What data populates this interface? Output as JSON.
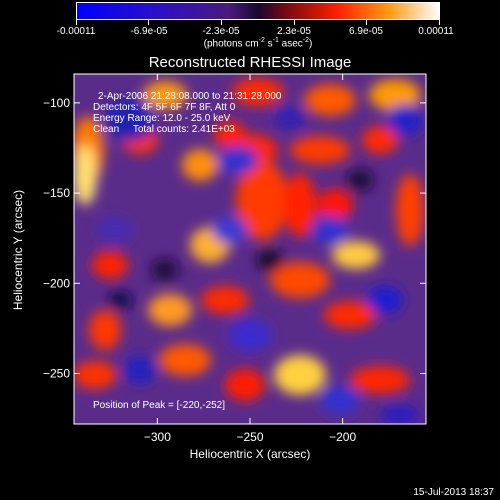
{
  "colors": {
    "background": "#000000",
    "foreground": "#ffffff"
  },
  "colorbar": {
    "tick_labels": [
      "-0.00011",
      "-6.9e-05",
      "-2.3e-05",
      "2.3e-05",
      "6.9e-05",
      "0.00011"
    ],
    "unit_label": "(photons cm",
    "unit_exp1": "-2",
    "unit_mid": " s",
    "unit_exp2": "-1",
    "unit_mid2": " asec",
    "unit_exp3": "-2",
    "unit_end": ")",
    "range": [
      -0.00011,
      0.00011
    ],
    "colormap": "rainbow/hot: blue-purple-red-orange-yellow-white"
  },
  "chart_data": {
    "type": "heatmap",
    "title": "Reconstructed RHESSI Image",
    "xlabel": "Heliocentric X (arcsec)",
    "ylabel": "Heliocentric Y (arcsec)",
    "xlim": [
      -345,
      -155
    ],
    "ylim": [
      -278,
      -84
    ],
    "x_ticks": [
      -300,
      -250,
      -200
    ],
    "y_ticks": [
      -100,
      -150,
      -200,
      -250
    ],
    "annotations": [
      "2-Apr-2006 21:28:08.000 to 21:31:28.000",
      "Detectors: 4F 5F 6F 7F 8F, Att 0",
      "Energy Range: 12.0 - 25.0 keV",
      "Clean     Total counts: 2.41E+03"
    ],
    "peak_text": "Position of Peak = [-220,-252]",
    "peak_position": [
      -220,
      -252
    ]
  },
  "footer": {
    "timestamp": "15-Jul-2013 18:37"
  }
}
